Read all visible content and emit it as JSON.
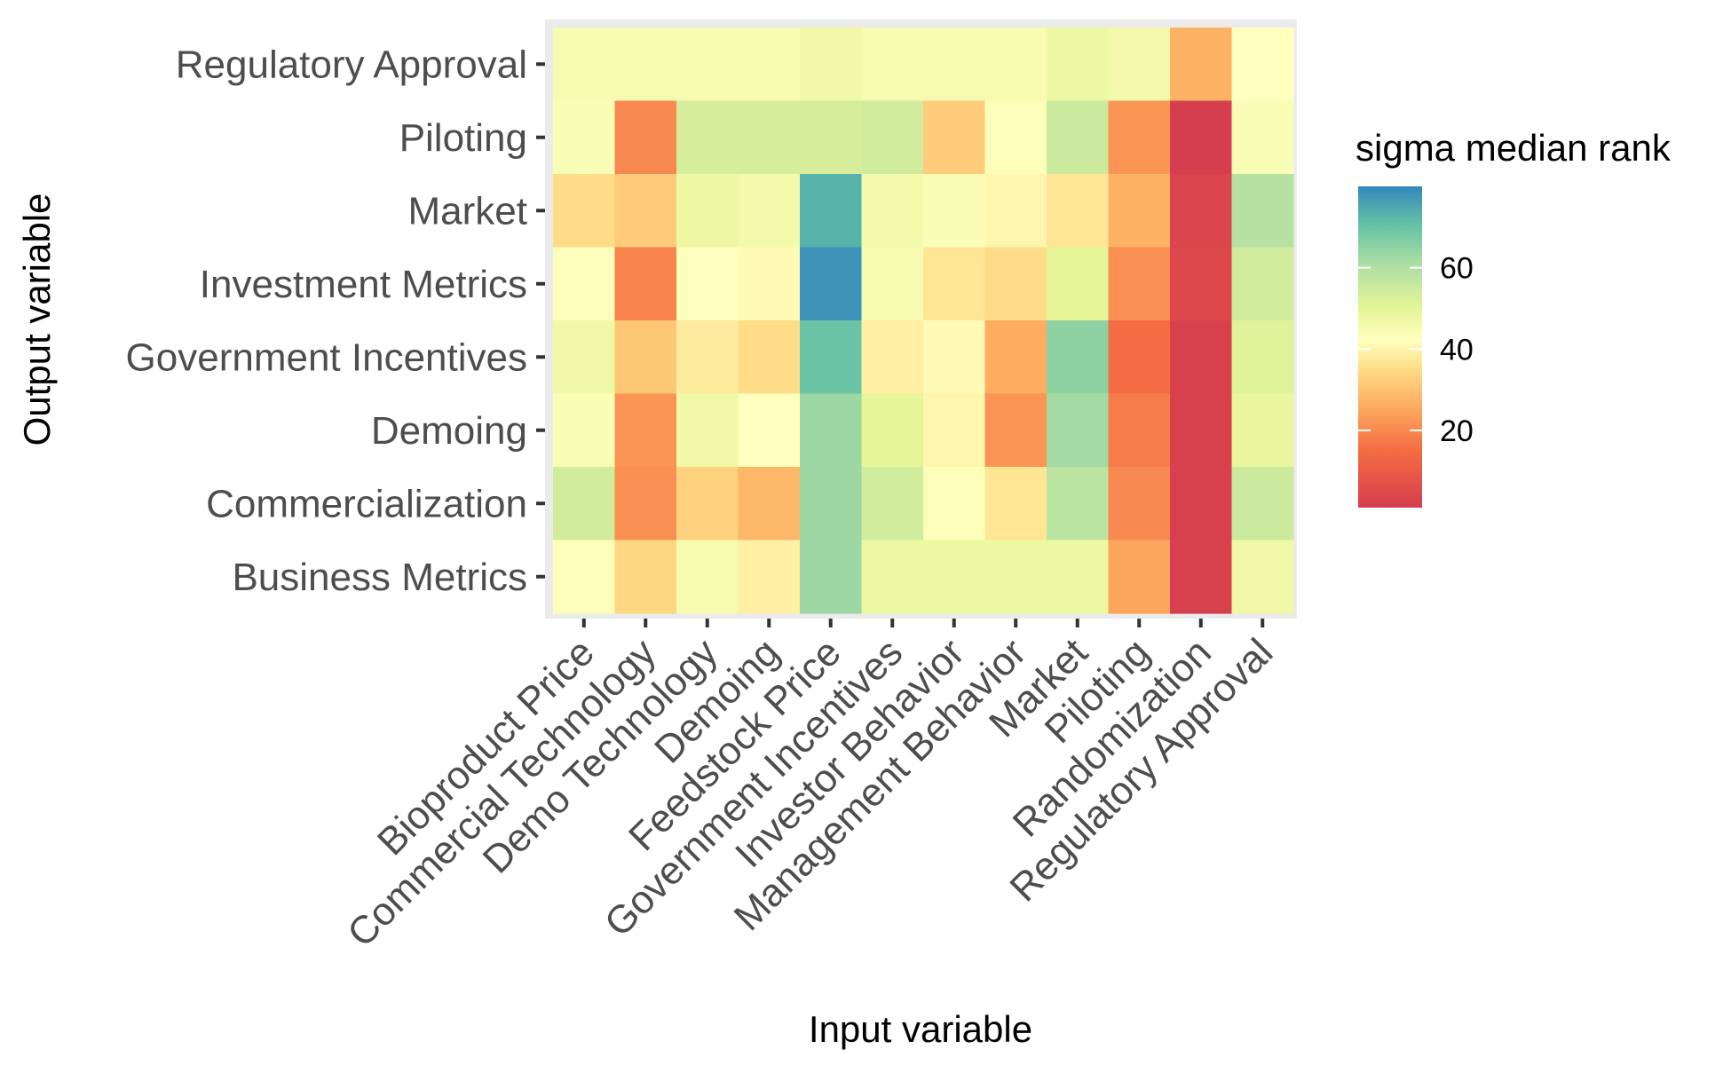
{
  "chart_data": {
    "type": "heatmap",
    "xlabel": "Input variable",
    "ylabel": "Output variable",
    "legend": {
      "title": "sigma median rank",
      "ticks": [
        20,
        40,
        60
      ],
      "min": 1,
      "max": 80,
      "placement": "right"
    },
    "x_categories": [
      "Bioproduct Price",
      "Commercial Technology",
      "Demo Technology",
      "Demoing",
      "Feedstock Price",
      "Government Incentives",
      "Investor Behavior",
      "Management Behavior",
      "Market",
      "Piloting",
      "Randomization",
      "Regulatory Approval"
    ],
    "y_categories": [
      "Regulatory Approval",
      "Piloting",
      "Market",
      "Investment Metrics",
      "Government Incentives",
      "Demoing",
      "Commercialization",
      "Business Metrics"
    ],
    "values": [
      [
        45,
        45,
        45,
        45,
        47,
        45,
        45,
        45,
        48,
        46,
        27,
        42
      ],
      [
        44,
        20,
        53,
        53,
        53,
        54,
        32,
        43,
        55,
        22,
        1,
        44
      ],
      [
        35,
        32,
        48,
        46,
        73,
        46,
        44,
        40,
        37,
        27,
        3,
        59
      ],
      [
        43,
        19,
        42,
        41,
        78,
        45,
        37,
        35,
        50,
        21,
        4,
        54
      ],
      [
        47,
        31,
        38,
        35,
        70,
        39,
        41,
        26,
        65,
        15,
        2,
        51
      ],
      [
        44,
        22,
        47,
        42,
        63,
        50,
        40,
        22,
        62,
        18,
        2,
        49
      ],
      [
        54,
        21,
        33,
        28,
        63,
        54,
        43,
        37,
        58,
        20,
        2,
        55
      ],
      [
        43,
        34,
        45,
        39,
        63,
        48,
        48,
        48,
        48,
        25,
        2,
        47
      ]
    ]
  }
}
